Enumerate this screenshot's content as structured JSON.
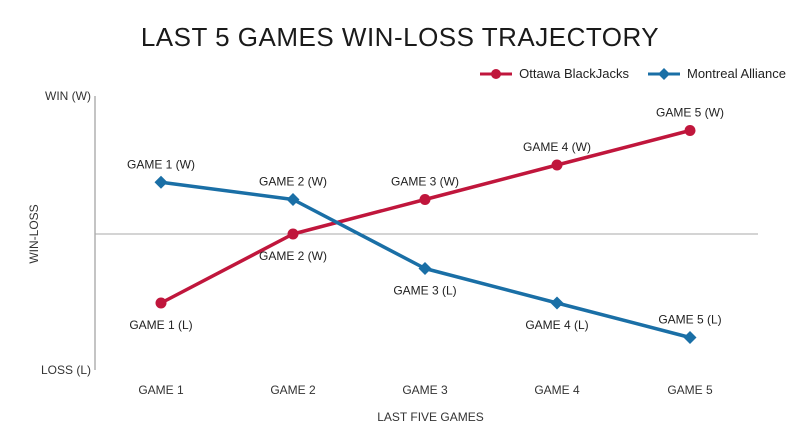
{
  "chart_data": {
    "type": "line",
    "title": "LAST 5 GAMES WIN-LOSS TRAJECTORY",
    "xlabel": "LAST FIVE GAMES",
    "ylabel": "WIN-LOSS",
    "categories": [
      "GAME 1",
      "GAME 2",
      "GAME 3",
      "GAME 4",
      "GAME 5"
    ],
    "y_ticks": {
      "top": "WIN (W)",
      "bottom": "LOSS (L)"
    },
    "ylim": [
      -1,
      1
    ],
    "midline": 0,
    "grid": false,
    "legend_position": "top-right",
    "series": [
      {
        "name": "Ottawa BlackJacks",
        "color": "#c0163c",
        "marker": "circle",
        "values": [
          -0.5,
          0.0,
          0.25,
          0.5,
          0.75
        ],
        "point_labels": [
          "GAME 1 (L)",
          "GAME 2 (W)",
          "GAME 3 (W)",
          "GAME 4 (W)",
          "GAME 5 (W)"
        ],
        "label_side": [
          "below",
          "below",
          "above",
          "above",
          "above"
        ]
      },
      {
        "name": "Montreal Alliance",
        "color": "#1a6fa6",
        "marker": "diamond",
        "values": [
          0.375,
          0.25,
          -0.25,
          -0.5,
          -0.75
        ],
        "point_labels": [
          "GAME 1 (W)",
          "GAME 2 (W)",
          "GAME 3 (L)",
          "GAME 4 (L)",
          "GAME 5 (L)"
        ],
        "label_side": [
          "above",
          "above",
          "below",
          "below",
          "above"
        ]
      }
    ]
  }
}
